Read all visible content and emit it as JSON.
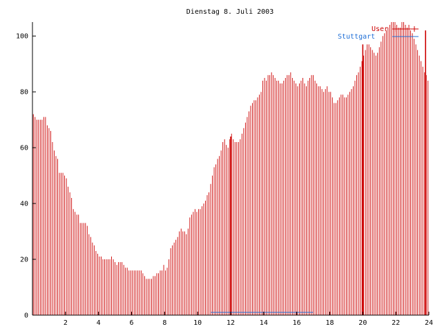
{
  "colors": {
    "users": "#cc0000",
    "stuttgart": "#1f6fd6",
    "axis": "#000000",
    "text": "#000000"
  },
  "chart_data": {
    "type": "bar",
    "title": "Dienstag 8. Juli 2003",
    "xlabel": "",
    "ylabel": "",
    "xlim": [
      0,
      24
    ],
    "ylim": [
      0,
      105
    ],
    "grid": false,
    "legend_position": "top-right",
    "xticks": [
      2,
      4,
      6,
      8,
      10,
      12,
      14,
      16,
      18,
      20,
      22,
      24
    ],
    "xtick_labels": [
      "2",
      "4",
      "6",
      "8",
      "10",
      "12",
      "14",
      "16",
      "18",
      "20",
      "22",
      "24"
    ],
    "yticks": [
      0,
      20,
      40,
      60,
      80,
      100
    ],
    "ytick_labels": [
      "0",
      "20",
      "40",
      "60",
      "80",
      "100"
    ],
    "series": [
      {
        "name": "User",
        "step_hours": 0.0833,
        "values": [
          72,
          71,
          70,
          70,
          70,
          70,
          71,
          71,
          68,
          67,
          66,
          62,
          59,
          57,
          56,
          51,
          51,
          51,
          50,
          49,
          46,
          44,
          42,
          38,
          37,
          36,
          36,
          33,
          33,
          33,
          33,
          32,
          29,
          28,
          26,
          25,
          23,
          22,
          21,
          21,
          20,
          20,
          20,
          20,
          20,
          21,
          20,
          19,
          18,
          19,
          19,
          19,
          18,
          17,
          17,
          16,
          16,
          16,
          16,
          16,
          16,
          16,
          16,
          15,
          14,
          13,
          13,
          13,
          13,
          14,
          14,
          15,
          15,
          16,
          16,
          18,
          16,
          17,
          20,
          24,
          25,
          26,
          27,
          28,
          30,
          31,
          30,
          30,
          29,
          31,
          35,
          36,
          37,
          38,
          37,
          38,
          38,
          39,
          40,
          41,
          43,
          44,
          47,
          50,
          53,
          54,
          56,
          57,
          59,
          62,
          63,
          61,
          60,
          63,
          65,
          63,
          62,
          62,
          62,
          63,
          65,
          67,
          69,
          71,
          73,
          75,
          76,
          77,
          77,
          78,
          79,
          80,
          84,
          85,
          84,
          86,
          86,
          87,
          86,
          85,
          84,
          84,
          83,
          83,
          84,
          85,
          86,
          86,
          87,
          85,
          84,
          83,
          82,
          83,
          84,
          85,
          83,
          82,
          84,
          85,
          86,
          86,
          84,
          83,
          82,
          82,
          81,
          80,
          81,
          82,
          80,
          80,
          78,
          76,
          76,
          77,
          78,
          79,
          79,
          78,
          78,
          79,
          80,
          81,
          82,
          84,
          86,
          87,
          89,
          91,
          93,
          95,
          97,
          97,
          96,
          95,
          94,
          93,
          94,
          96,
          98,
          100,
          101,
          102,
          103,
          104,
          105,
          105,
          105,
          104,
          103,
          103,
          105,
          105,
          104,
          103,
          104,
          102,
          101,
          99,
          97,
          95,
          93,
          91,
          89,
          87,
          86,
          84
        ],
        "spikes": [
          {
            "x": 12,
            "value": 64
          },
          {
            "x": 20,
            "value": 97
          },
          {
            "x": 23.8,
            "value": 102
          }
        ]
      },
      {
        "name": "Stuttgart",
        "segments": [
          {
            "x_start": 10.8,
            "x_end": 17.0,
            "value": 1
          }
        ]
      }
    ]
  },
  "legend": {
    "users_label": "User",
    "stuttgart_label": "Stuttgart"
  }
}
